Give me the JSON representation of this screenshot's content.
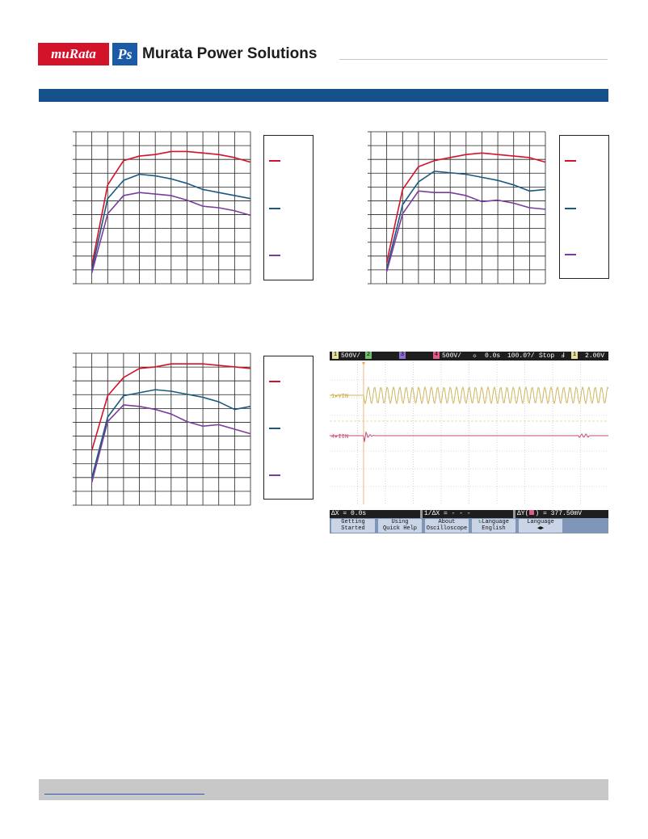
{
  "header": {
    "logo_murata": "muRata",
    "logo_ps": "Ps",
    "company": "Murata Power Solutions"
  },
  "colors": {
    "red": "#d3132a",
    "blue": "#185a80",
    "purple": "#7a3c9e",
    "band": "#15508a",
    "scope_yellow": "#cdb75d",
    "scope_pink": "#c54a78"
  },
  "chart_data": [
    {
      "type": "line",
      "grid": true,
      "x": [
        0,
        1,
        2,
        3,
        4,
        5,
        6,
        7,
        8,
        9,
        10
      ],
      "xlim": [
        -1,
        10
      ],
      "ylim": [
        0,
        10
      ],
      "legend": "right",
      "series": [
        {
          "color": "#d3132a",
          "values": [
            1.2,
            6.5,
            8.1,
            8.4,
            8.5,
            8.7,
            8.7,
            8.6,
            8.5,
            8.3,
            8.0
          ]
        },
        {
          "color": "#185a80",
          "values": [
            0.9,
            5.6,
            6.8,
            7.2,
            7.1,
            6.9,
            6.6,
            6.2,
            6.0,
            5.8,
            5.6
          ]
        },
        {
          "color": "#7a3c9e",
          "values": [
            0.7,
            4.6,
            5.8,
            6.0,
            5.9,
            5.8,
            5.5,
            5.1,
            5.0,
            4.8,
            4.5
          ]
        }
      ]
    },
    {
      "type": "line",
      "grid": true,
      "x": [
        0,
        1,
        2,
        3,
        4,
        5,
        6,
        7,
        8,
        9,
        10
      ],
      "xlim": [
        -1,
        10
      ],
      "ylim": [
        0,
        10
      ],
      "legend": "right",
      "series": [
        {
          "color": "#d3132a",
          "values": [
            1.4,
            6.2,
            7.7,
            8.1,
            8.3,
            8.5,
            8.6,
            8.5,
            8.4,
            8.3,
            8.0
          ]
        },
        {
          "color": "#185a80",
          "values": [
            1.0,
            5.2,
            6.7,
            7.4,
            7.3,
            7.2,
            7.0,
            6.8,
            6.5,
            6.1,
            6.2
          ]
        },
        {
          "color": "#7a3c9e",
          "values": [
            0.8,
            4.6,
            6.1,
            6.0,
            6.0,
            5.8,
            5.4,
            5.5,
            5.3,
            5.0,
            4.9
          ]
        }
      ]
    },
    {
      "type": "line",
      "grid": true,
      "x": [
        0,
        1,
        2,
        3,
        4,
        5,
        6,
        7,
        8,
        9,
        10
      ],
      "xlim": [
        -1,
        10
      ],
      "ylim": [
        0,
        10
      ],
      "legend": "right",
      "series": [
        {
          "color": "#d3132a",
          "values": [
            3.6,
            7.2,
            8.4,
            9.0,
            9.1,
            9.3,
            9.3,
            9.3,
            9.2,
            9.1,
            9.0
          ]
        },
        {
          "color": "#185a80",
          "values": [
            1.8,
            5.8,
            7.2,
            7.4,
            7.6,
            7.5,
            7.3,
            7.1,
            6.8,
            6.3,
            6.5
          ]
        },
        {
          "color": "#7a3c9e",
          "values": [
            1.5,
            5.5,
            6.6,
            6.5,
            6.3,
            6.0,
            5.5,
            5.2,
            5.3,
            5.0,
            4.7
          ]
        }
      ]
    }
  ],
  "scope": {
    "ch1_num": "1",
    "ch1_scale": "500V/",
    "ch2_num": "2",
    "ch3_num": "3",
    "ch4_num": "4",
    "ch4_scale": "500V/",
    "delay_icon": "☼",
    "delay": "0.0s",
    "timebase": "100.0?/",
    "run_state": "Stop",
    "trigger_icon": "Ⅎ",
    "trig_ch": "1",
    "trig_level": "2.00V",
    "trace1_label": "VIN",
    "trace2_label": "IIN",
    "status_dx": "ΔX = 0.0s",
    "status_inv": "1/ΔX = - - -",
    "status_dy_a": "ΔY(",
    "status_dy_b": ") = 377.50mV",
    "keys": [
      {
        "l1": "Getting",
        "l2": "Started"
      },
      {
        "l1": "Using",
        "l2": "Quick Help"
      },
      {
        "l1": "About",
        "l2": "Oscilloscope"
      },
      {
        "l1": "Language",
        "l2": "English"
      },
      {
        "l1": "Language",
        "l2": "◀▶"
      }
    ]
  }
}
